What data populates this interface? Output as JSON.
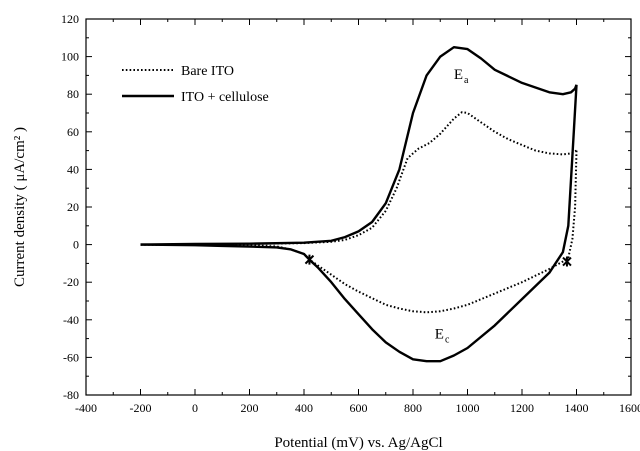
{
  "chart_data": {
    "type": "line",
    "title": "",
    "xlabel": "Potential (mV) vs. Ag/AgCl",
    "ylabel": "Current density ( μA/cm² )",
    "xlim": [
      -400,
      1600
    ],
    "ylim": [
      -80,
      120
    ],
    "xticks": [
      -400,
      -200,
      0,
      200,
      400,
      600,
      800,
      1000,
      1200,
      1400,
      1600
    ],
    "yticks": [
      -80,
      -60,
      -40,
      -20,
      0,
      20,
      40,
      60,
      80,
      100,
      120
    ],
    "grid": false,
    "legend": "top-left",
    "series": [
      {
        "name": "Bare ITO",
        "style": "dotted",
        "anodic": {
          "x": [
            -200,
            0,
            200,
            400,
            500,
            550,
            600,
            650,
            700,
            740,
            780,
            820,
            860,
            900,
            950,
            980,
            1000,
            1050,
            1100,
            1150,
            1200,
            1250,
            1300,
            1350,
            1380,
            1400
          ],
          "y": [
            0,
            0,
            0.3,
            0.8,
            1.5,
            2.5,
            5,
            9,
            18,
            30,
            46,
            51,
            54,
            59,
            67,
            70.5,
            70,
            65,
            60,
            56,
            53,
            50,
            48.5,
            48,
            48.5,
            50
          ]
        },
        "cathodic": {
          "x": [
            1400,
            1395,
            1385,
            1370,
            1350,
            1300,
            1200,
            1100,
            1000,
            950,
            900,
            850,
            800,
            750,
            700,
            650,
            600,
            550,
            500,
            450,
            420,
            400,
            350,
            300,
            200,
            100,
            0,
            -200
          ],
          "y": [
            50,
            20,
            3,
            -7,
            -9,
            -13,
            -20,
            -26,
            -32,
            -34,
            -35.5,
            -36,
            -35.5,
            -34,
            -32,
            -28.5,
            -25,
            -21,
            -16,
            -11,
            -8,
            -5,
            -2.5,
            -1,
            -0.4,
            -0.2,
            -0.2,
            0
          ]
        }
      },
      {
        "name": "ITO + cellulose",
        "style": "solid",
        "anodic": {
          "x": [
            -200,
            0,
            200,
            400,
            500,
            550,
            600,
            650,
            700,
            750,
            800,
            850,
            900,
            950,
            1000,
            1050,
            1100,
            1200,
            1300,
            1350,
            1380,
            1395,
            1400
          ],
          "y": [
            0,
            0.3,
            0.5,
            1,
            2,
            4,
            7,
            12,
            22,
            40,
            70,
            90,
            100,
            105,
            104,
            99,
            93,
            86,
            81,
            80,
            81,
            83,
            85
          ]
        },
        "cathodic": {
          "x": [
            1400,
            1390,
            1370,
            1350,
            1300,
            1200,
            1100,
            1000,
            950,
            900,
            850,
            800,
            750,
            700,
            650,
            600,
            550,
            500,
            450,
            420,
            400,
            350,
            300,
            200,
            100,
            0,
            -200
          ],
          "y": [
            85,
            60,
            10,
            -4,
            -15,
            -29,
            -43,
            -55,
            -59,
            -62,
            -62,
            -61,
            -57,
            -52,
            -45,
            -37,
            -29,
            -20,
            -12,
            -8,
            -5,
            -2.5,
            -1.5,
            -1,
            -0.7,
            -0.3,
            0
          ]
        }
      }
    ],
    "annotations": [
      {
        "text": "E",
        "sub": "a",
        "x": 950,
        "y": 88
      },
      {
        "text": "E",
        "sub": "c",
        "x": 880,
        "y": -50
      }
    ],
    "markers": [
      {
        "x": 420,
        "y": -8
      },
      {
        "x": 1365,
        "y": -9
      }
    ]
  }
}
